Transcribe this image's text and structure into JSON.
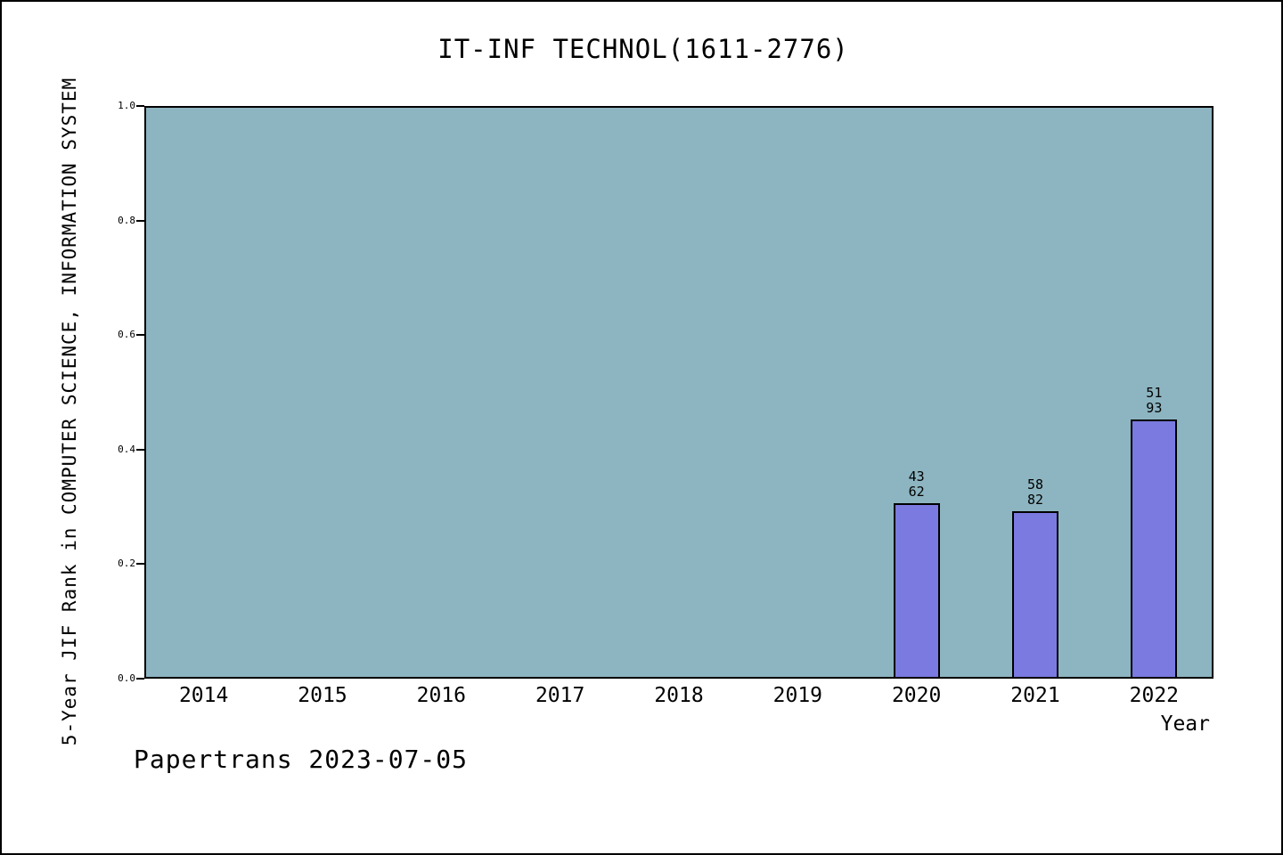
{
  "chart_data": {
    "type": "bar",
    "title": "IT-INF TECHNOL(1611-2776)",
    "xlabel": "Year",
    "ylabel": "5-Year JIF Rank in COMPUTER SCIENCE, INFORMATION SYSTEM",
    "categories": [
      "2014",
      "2015",
      "2016",
      "2017",
      "2018",
      "2019",
      "2020",
      "2021",
      "2022"
    ],
    "series": [
      {
        "name": "5-Year JIF Rank",
        "values": [
          null,
          null,
          null,
          null,
          null,
          null,
          0.306,
          0.293,
          0.452
        ]
      }
    ],
    "bar_annotations": [
      null,
      null,
      null,
      null,
      null,
      null,
      [
        "43",
        "62"
      ],
      [
        "58",
        "82"
      ],
      [
        "51",
        "93"
      ]
    ],
    "ylim": [
      0,
      1
    ],
    "yticks": [
      "0.0",
      "0.2",
      "0.4",
      "0.6",
      "0.8",
      "1.0"
    ],
    "grid": false,
    "legend": "none",
    "colors": {
      "plot_background": "#8db5c1",
      "bar_fill": "#7a7ae0",
      "bar_border": "#000000",
      "text": "#000000"
    }
  },
  "footer": {
    "text": "Papertrans 2023-07-05"
  }
}
